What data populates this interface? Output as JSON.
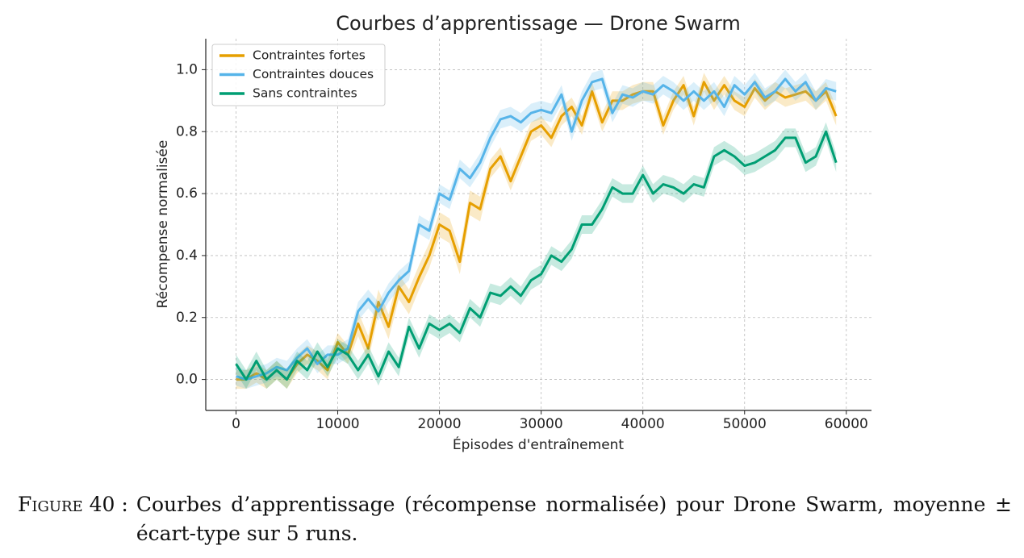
{
  "chart_data": {
    "type": "line",
    "title": "Courbes d’apprentissage — Drone Swarm",
    "xlabel": "Épisodes d'entraînement",
    "ylabel": "Récompense normalisée",
    "x": [
      0,
      1000,
      2000,
      3000,
      4000,
      5000,
      6000,
      7000,
      8000,
      9000,
      10000,
      11000,
      12000,
      13000,
      14000,
      15000,
      16000,
      17000,
      18000,
      19000,
      20000,
      21000,
      22000,
      23000,
      24000,
      25000,
      26000,
      27000,
      28000,
      29000,
      30000,
      31000,
      32000,
      33000,
      34000,
      35000,
      36000,
      37000,
      38000,
      39000,
      40000,
      41000,
      42000,
      43000,
      44000,
      45000,
      46000,
      47000,
      48000,
      49000,
      50000,
      51000,
      52000,
      53000,
      54000,
      55000,
      56000,
      57000,
      58000,
      59000
    ],
    "series": [
      {
        "name": "Contraintes fortes",
        "color": "#E69F00",
        "values": [
          0.0,
          0.0,
          0.02,
          0.0,
          0.03,
          0.0,
          0.05,
          0.08,
          0.06,
          0.03,
          0.12,
          0.08,
          0.18,
          0.1,
          0.25,
          0.17,
          0.3,
          0.25,
          0.33,
          0.4,
          0.5,
          0.48,
          0.38,
          0.57,
          0.55,
          0.68,
          0.72,
          0.64,
          0.72,
          0.8,
          0.82,
          0.78,
          0.85,
          0.88,
          0.82,
          0.93,
          0.83,
          0.9,
          0.9,
          0.92,
          0.93,
          0.93,
          0.82,
          0.9,
          0.95,
          0.85,
          0.96,
          0.9,
          0.95,
          0.9,
          0.88,
          0.94,
          0.9,
          0.93,
          0.91,
          0.92,
          0.93,
          0.9,
          0.93,
          0.85
        ],
        "std": [
          0.03,
          0.03,
          0.03,
          0.03,
          0.03,
          0.03,
          0.03,
          0.03,
          0.03,
          0.03,
          0.03,
          0.03,
          0.04,
          0.04,
          0.04,
          0.04,
          0.04,
          0.04,
          0.04,
          0.04,
          0.04,
          0.04,
          0.04,
          0.04,
          0.04,
          0.03,
          0.03,
          0.03,
          0.03,
          0.03,
          0.03,
          0.03,
          0.03,
          0.03,
          0.03,
          0.03,
          0.03,
          0.03,
          0.03,
          0.03,
          0.03,
          0.03,
          0.03,
          0.03,
          0.03,
          0.03,
          0.03,
          0.03,
          0.03,
          0.03,
          0.03,
          0.03,
          0.03,
          0.03,
          0.03,
          0.03,
          0.03,
          0.03,
          0.03,
          0.03
        ]
      },
      {
        "name": "Contraintes douces",
        "color": "#56B4E9",
        "values": [
          0.01,
          0.0,
          0.01,
          0.02,
          0.04,
          0.03,
          0.07,
          0.1,
          0.05,
          0.08,
          0.08,
          0.1,
          0.22,
          0.26,
          0.22,
          0.28,
          0.32,
          0.35,
          0.5,
          0.48,
          0.6,
          0.58,
          0.68,
          0.65,
          0.7,
          0.78,
          0.84,
          0.85,
          0.83,
          0.86,
          0.87,
          0.86,
          0.92,
          0.8,
          0.9,
          0.96,
          0.97,
          0.86,
          0.92,
          0.91,
          0.93,
          0.92,
          0.95,
          0.93,
          0.9,
          0.93,
          0.9,
          0.93,
          0.88,
          0.95,
          0.92,
          0.96,
          0.91,
          0.93,
          0.97,
          0.93,
          0.96,
          0.9,
          0.94,
          0.93
        ],
        "std": [
          0.03,
          0.03,
          0.03,
          0.03,
          0.03,
          0.03,
          0.03,
          0.03,
          0.03,
          0.03,
          0.03,
          0.03,
          0.03,
          0.03,
          0.03,
          0.03,
          0.03,
          0.03,
          0.03,
          0.03,
          0.03,
          0.03,
          0.03,
          0.03,
          0.03,
          0.03,
          0.03,
          0.03,
          0.03,
          0.03,
          0.03,
          0.03,
          0.03,
          0.03,
          0.03,
          0.03,
          0.03,
          0.03,
          0.03,
          0.03,
          0.03,
          0.03,
          0.03,
          0.03,
          0.03,
          0.03,
          0.03,
          0.03,
          0.03,
          0.03,
          0.03,
          0.03,
          0.03,
          0.03,
          0.03,
          0.03,
          0.03,
          0.03,
          0.03,
          0.03
        ]
      },
      {
        "name": "Sans contraintes",
        "color": "#009E73",
        "values": [
          0.05,
          0.0,
          0.06,
          0.0,
          0.03,
          0.0,
          0.06,
          0.03,
          0.09,
          0.04,
          0.1,
          0.08,
          0.03,
          0.08,
          0.01,
          0.09,
          0.04,
          0.17,
          0.1,
          0.18,
          0.16,
          0.18,
          0.15,
          0.23,
          0.2,
          0.28,
          0.27,
          0.3,
          0.27,
          0.32,
          0.34,
          0.4,
          0.38,
          0.42,
          0.5,
          0.5,
          0.55,
          0.62,
          0.6,
          0.6,
          0.66,
          0.6,
          0.63,
          0.62,
          0.6,
          0.63,
          0.62,
          0.72,
          0.74,
          0.72,
          0.69,
          0.7,
          0.72,
          0.74,
          0.78,
          0.78,
          0.7,
          0.72,
          0.8,
          0.7
        ],
        "std": [
          0.03,
          0.03,
          0.03,
          0.03,
          0.03,
          0.03,
          0.03,
          0.03,
          0.03,
          0.03,
          0.03,
          0.03,
          0.03,
          0.03,
          0.03,
          0.03,
          0.03,
          0.03,
          0.03,
          0.03,
          0.03,
          0.03,
          0.03,
          0.03,
          0.03,
          0.03,
          0.03,
          0.03,
          0.03,
          0.03,
          0.03,
          0.03,
          0.03,
          0.03,
          0.03,
          0.03,
          0.03,
          0.03,
          0.03,
          0.03,
          0.03,
          0.03,
          0.03,
          0.03,
          0.03,
          0.03,
          0.03,
          0.03,
          0.03,
          0.03,
          0.03,
          0.03,
          0.03,
          0.03,
          0.03,
          0.03,
          0.03,
          0.03,
          0.03,
          0.03
        ]
      }
    ],
    "xlim": [
      -2975,
      62475
    ],
    "ylim": [
      -0.1,
      1.1
    ],
    "xticks": [
      0,
      10000,
      20000,
      30000,
      40000,
      50000,
      60000
    ],
    "yticks": [
      {
        "value": 0,
        "label": "0.0"
      },
      0.2,
      0.4,
      0.6,
      0.8,
      {
        "value": 1,
        "label": "1.0"
      }
    ],
    "grid": true,
    "legend": "upper left"
  },
  "caption": {
    "label": "Figure 40 :",
    "text": "Courbes d’apprentissage (récompense normalisée) pour Drone Swarm, moyenne ± écart-type sur 5 runs."
  }
}
